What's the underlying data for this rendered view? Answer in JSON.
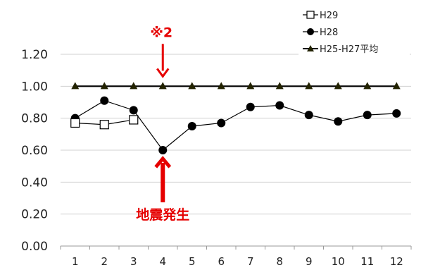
{
  "chart_data": {
    "type": "line",
    "x": [
      1,
      2,
      3,
      4,
      5,
      6,
      7,
      8,
      9,
      10,
      11,
      12
    ],
    "ylim": [
      0.0,
      1.2
    ],
    "yticks": [
      "0.00",
      "0.20",
      "0.40",
      "0.60",
      "0.80",
      "1.00",
      "1.20"
    ],
    "grid": true,
    "legend_position": "top-right",
    "series": [
      {
        "name": "H29",
        "marker": "square-open",
        "color": "#000000",
        "values": [
          0.77,
          0.76,
          0.79,
          null,
          null,
          null,
          null,
          null,
          null,
          null,
          null,
          null
        ]
      },
      {
        "name": "H28",
        "marker": "circle",
        "color": "#000000",
        "values": [
          0.8,
          0.91,
          0.85,
          0.6,
          0.75,
          0.77,
          0.87,
          0.88,
          0.82,
          0.78,
          0.82,
          0.83
        ]
      },
      {
        "name": "H25-H27平均",
        "marker": "triangle",
        "color": "#000000",
        "values": [
          1.0,
          1.0,
          1.0,
          1.0,
          1.0,
          1.0,
          1.0,
          1.0,
          1.0,
          1.0,
          1.0,
          1.0
        ]
      }
    ],
    "annotations": [
      {
        "text": "※2",
        "x": 4,
        "points_to": 1.0,
        "direction": "down",
        "color": "#e60000"
      },
      {
        "text": "地震発生",
        "x": 4,
        "points_to": 0.6,
        "direction": "up",
        "color": "#e60000"
      }
    ]
  }
}
